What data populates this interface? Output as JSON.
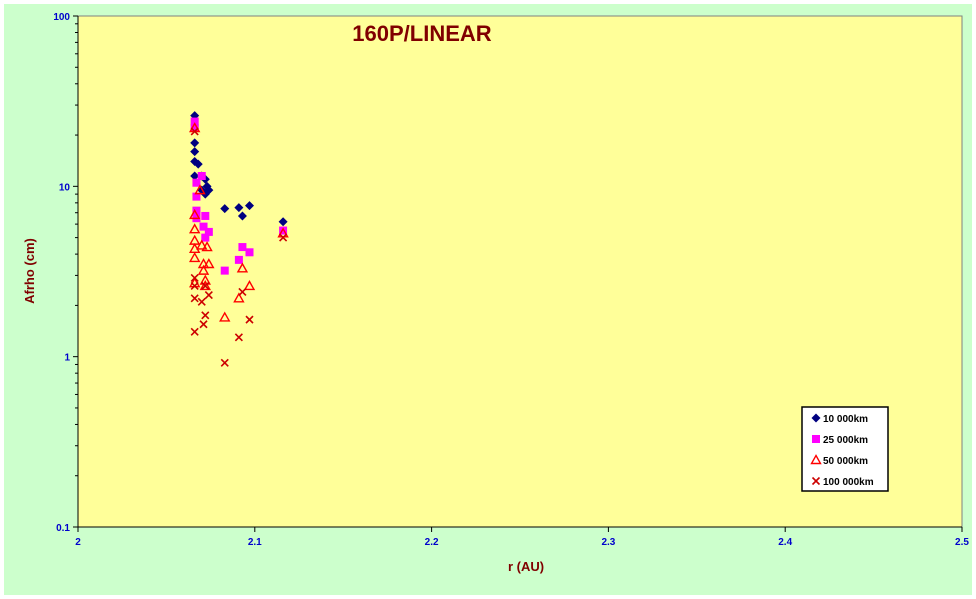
{
  "chart_data": {
    "type": "scatter",
    "title": "160P/LINEAR",
    "xlabel": "r (AU)",
    "ylabel": "Afrho (cm)",
    "xlim": [
      2,
      2.5
    ],
    "ylim": [
      0.1,
      100
    ],
    "y_scale": "log",
    "x_ticks": [
      "2",
      "2.1",
      "2.2",
      "2.3",
      "2.4",
      "2.5"
    ],
    "y_ticks": [
      "0.1",
      "1",
      "10",
      "100"
    ],
    "legend_position": "bottom-right",
    "colors": {
      "plot_background": "#ffff99",
      "chart_background": "#ccffcc",
      "title": "#800000",
      "tick_labels": "#0000cc"
    },
    "series": [
      {
        "name": "10 000km",
        "marker": "diamond",
        "color": "#000080",
        "points": [
          [
            2.066,
            26
          ],
          [
            2.066,
            18
          ],
          [
            2.066,
            16
          ],
          [
            2.066,
            14
          ],
          [
            2.066,
            11.5
          ],
          [
            2.068,
            13.5
          ],
          [
            2.07,
            11.5
          ],
          [
            2.07,
            9.5
          ],
          [
            2.072,
            11.0
          ],
          [
            2.072,
            9.0
          ],
          [
            2.073,
            10.0
          ],
          [
            2.074,
            9.5
          ],
          [
            2.083,
            7.4
          ],
          [
            2.091,
            7.5
          ],
          [
            2.093,
            6.7
          ],
          [
            2.097,
            7.7
          ],
          [
            2.116,
            6.2
          ]
        ]
      },
      {
        "name": "25 000km",
        "marker": "square",
        "color": "#ff00ff",
        "points": [
          [
            2.066,
            24
          ],
          [
            2.066,
            22
          ],
          [
            2.067,
            10.5
          ],
          [
            2.067,
            8.7
          ],
          [
            2.067,
            7.2
          ],
          [
            2.067,
            6.5
          ],
          [
            2.07,
            11.5
          ],
          [
            2.071,
            5.8
          ],
          [
            2.072,
            6.7
          ],
          [
            2.072,
            5.0
          ],
          [
            2.074,
            5.4
          ],
          [
            2.083,
            3.2
          ],
          [
            2.091,
            3.7
          ],
          [
            2.093,
            4.4
          ],
          [
            2.097,
            4.1
          ],
          [
            2.116,
            5.5
          ]
        ]
      },
      {
        "name": "50 000km",
        "marker": "triangle",
        "color": "#ff0000",
        "points": [
          [
            2.066,
            22
          ],
          [
            2.066,
            6.8
          ],
          [
            2.066,
            5.6
          ],
          [
            2.066,
            4.8
          ],
          [
            2.066,
            4.3
          ],
          [
            2.066,
            3.8
          ],
          [
            2.066,
            2.7
          ],
          [
            2.069,
            9.5
          ],
          [
            2.07,
            4.5
          ],
          [
            2.071,
            3.5
          ],
          [
            2.071,
            3.2
          ],
          [
            2.072,
            2.8
          ],
          [
            2.072,
            2.6
          ],
          [
            2.073,
            4.4
          ],
          [
            2.074,
            3.5
          ],
          [
            2.083,
            1.7
          ],
          [
            2.091,
            2.2
          ],
          [
            2.093,
            3.3
          ],
          [
            2.097,
            2.6
          ],
          [
            2.116,
            5.3
          ]
        ]
      },
      {
        "name": "100 000km",
        "marker": "x",
        "color": "#cc0000",
        "points": [
          [
            2.066,
            21
          ],
          [
            2.066,
            2.9
          ],
          [
            2.066,
            2.6
          ],
          [
            2.066,
            2.2
          ],
          [
            2.066,
            1.4
          ],
          [
            2.07,
            2.1
          ],
          [
            2.071,
            1.55
          ],
          [
            2.072,
            1.75
          ],
          [
            2.072,
            2.6
          ],
          [
            2.074,
            2.3
          ],
          [
            2.083,
            0.92
          ],
          [
            2.091,
            1.3
          ],
          [
            2.093,
            2.4
          ],
          [
            2.097,
            1.65
          ],
          [
            2.116,
            5.0
          ]
        ]
      }
    ]
  }
}
